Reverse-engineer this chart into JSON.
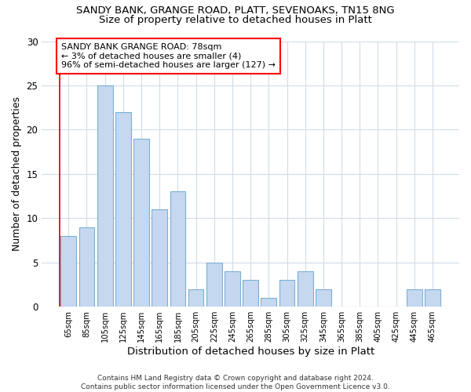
{
  "title1": "SANDY BANK, GRANGE ROAD, PLATT, SEVENOAKS, TN15 8NG",
  "title2": "Size of property relative to detached houses in Platt",
  "xlabel": "Distribution of detached houses by size in Platt",
  "ylabel": "Number of detached properties",
  "categories": [
    "65sqm",
    "85sqm",
    "105sqm",
    "125sqm",
    "145sqm",
    "165sqm",
    "185sqm",
    "205sqm",
    "225sqm",
    "245sqm",
    "265sqm",
    "285sqm",
    "305sqm",
    "325sqm",
    "345sqm",
    "365sqm",
    "385sqm",
    "405sqm",
    "425sqm",
    "445sqm",
    "465sqm"
  ],
  "values": [
    8,
    9,
    25,
    22,
    19,
    11,
    13,
    2,
    5,
    4,
    3,
    1,
    3,
    4,
    2,
    0,
    0,
    0,
    0,
    2,
    2
  ],
  "bar_color": "#c5d8f0",
  "bar_edge_color": "#7aafd4",
  "annotation_text_line1": "SANDY BANK GRANGE ROAD: 78sqm",
  "annotation_text_line2": "← 3% of detached houses are smaller (4)",
  "annotation_text_line3": "96% of semi-detached houses are larger (127) →",
  "annotation_fontsize": 8.0,
  "bg_color": "#ffffff",
  "plot_bg_color": "#ffffff",
  "grid_color": "#d0dce8",
  "ylim": [
    0,
    30
  ],
  "yticks": [
    0,
    5,
    10,
    15,
    20,
    25,
    30
  ],
  "title1_fontsize": 9.5,
  "title2_fontsize": 9.5,
  "xlabel_fontsize": 9.5,
  "ylabel_fontsize": 9.0,
  "footer": "Contains HM Land Registry data © Crown copyright and database right 2024.\nContains public sector information licensed under the Open Government Licence v3.0."
}
